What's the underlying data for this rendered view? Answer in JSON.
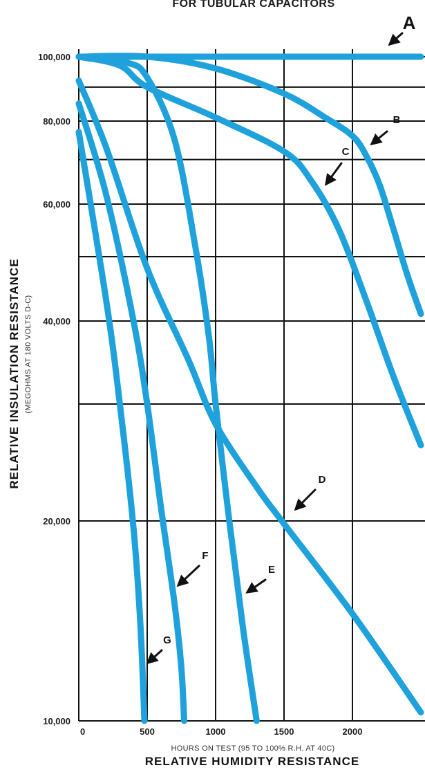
{
  "chart_data": {
    "type": "line",
    "title": "FOR TUBULAR CAPACITORS",
    "xlabel": "RELATIVE HUMIDITY RESISTANCE",
    "x_sublabel": "HOURS ON TEST (95 TO 100% R.H. AT 40C)",
    "ylabel": "RELATIVE INSULATION RESISTANCE",
    "y_sublabel": "(MEGOHMS AT 180 VOLTS D-C)",
    "xlim": [
      0,
      2500
    ],
    "ylim": [
      10000,
      100000
    ],
    "yscale": "log",
    "x_ticks": [
      "0",
      "500",
      "1000",
      "1500",
      "2000"
    ],
    "y_ticks": [
      "100,000",
      "80,000",
      "60,000",
      "40,000",
      "20,000",
      "10,000"
    ],
    "grid": true,
    "series": [
      {
        "name": "A",
        "x": [
          0,
          500,
          1000,
          1500,
          2000,
          2500
        ],
        "y": [
          100000,
          100000,
          100000,
          100000,
          100000,
          100000
        ]
      },
      {
        "name": "B",
        "x": [
          0,
          500,
          1000,
          1500,
          1800,
          2000,
          2100,
          2200,
          2300,
          2400,
          2500
        ],
        "y": [
          100000,
          100000,
          96000,
          88000,
          81000,
          76000,
          71000,
          64000,
          55000,
          47000,
          41000
        ]
      },
      {
        "name": "C",
        "x": [
          0,
          300,
          500,
          1000,
          1500,
          1700,
          1900,
          2100,
          2300,
          2500
        ],
        "y": [
          100000,
          97000,
          90000,
          81000,
          72000,
          65000,
          55000,
          43000,
          33000,
          26000
        ]
      },
      {
        "name": "D",
        "x": [
          0,
          200,
          500,
          800,
          1000,
          1300,
          1500,
          2000,
          2500
        ],
        "y": [
          92000,
          73000,
          48000,
          35000,
          28000,
          22500,
          19800,
          14500,
          10300
        ]
      },
      {
        "name": "E",
        "x": [
          0,
          350,
          500,
          700,
          850,
          950,
          1000,
          1100,
          1200,
          1300
        ],
        "y": [
          100000,
          98000,
          93000,
          75000,
          52000,
          38000,
          30000,
          20000,
          13800,
          10000
        ]
      },
      {
        "name": "F",
        "x": [
          0,
          200,
          400,
          500,
          600,
          700,
          750,
          770
        ],
        "y": [
          85000,
          62000,
          40000,
          30000,
          21000,
          15000,
          12000,
          10000
        ]
      },
      {
        "name": "G",
        "x": [
          0,
          200,
          300,
          400,
          450,
          480
        ],
        "y": [
          77000,
          43000,
          30000,
          19500,
          14000,
          10000
        ]
      }
    ]
  }
}
